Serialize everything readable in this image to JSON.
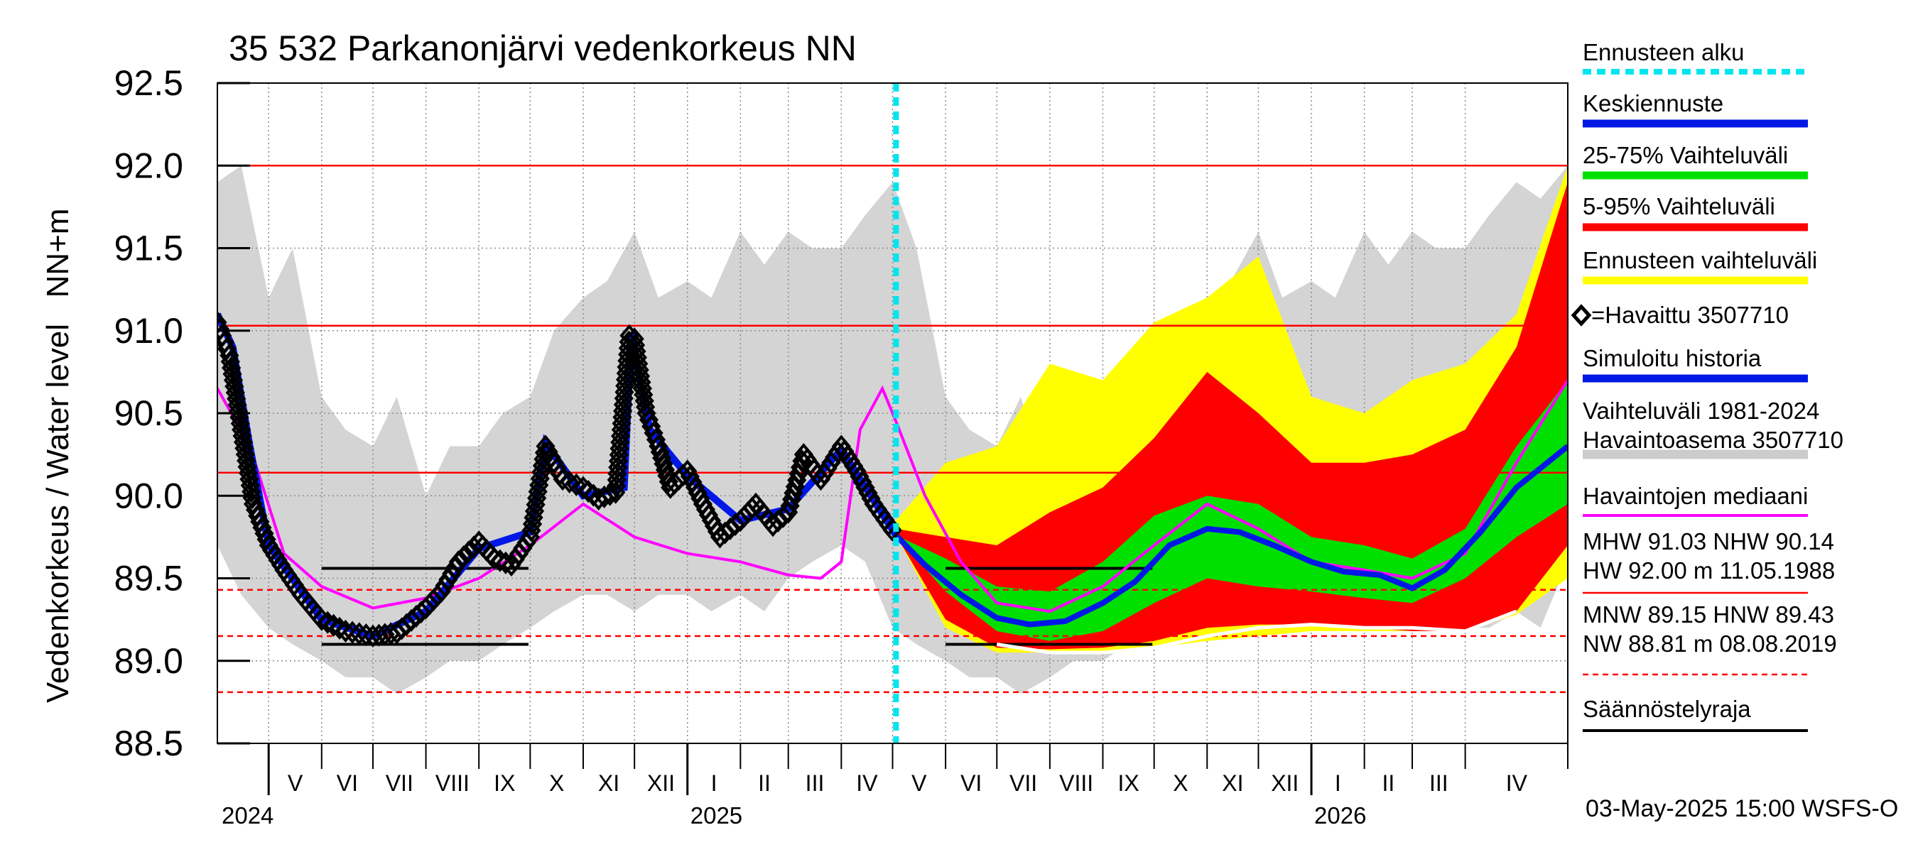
{
  "chart_data": {
    "type": "line",
    "title": "35 532 Parkanonjärvi vedenkorkeus NN",
    "ylabel": "Vedenkorkeus / Water level   NN+m",
    "ylim": [
      88.5,
      92.5
    ],
    "yticks": [
      "88.5",
      "89.0",
      "89.5",
      "90.0",
      "90.5",
      "91.0",
      "91.5",
      "92.0",
      "92.5"
    ],
    "xlim": [
      "2024-04-01",
      "2026-05-31"
    ],
    "months": [
      {
        "label": "V",
        "date": "2024-05-01"
      },
      {
        "label": "VI",
        "date": "2024-06-01"
      },
      {
        "label": "VII",
        "date": "2024-07-01"
      },
      {
        "label": "VIII",
        "date": "2024-08-01"
      },
      {
        "label": "IX",
        "date": "2024-09-01"
      },
      {
        "label": "X",
        "date": "2024-10-01"
      },
      {
        "label": "XI",
        "date": "2024-11-01"
      },
      {
        "label": "XII",
        "date": "2024-12-01"
      },
      {
        "label": "I",
        "date": "2025-01-01"
      },
      {
        "label": "II",
        "date": "2025-02-01"
      },
      {
        "label": "III",
        "date": "2025-03-01"
      },
      {
        "label": "IV",
        "date": "2025-04-01"
      },
      {
        "label": "V",
        "date": "2025-05-01"
      },
      {
        "label": "VI",
        "date": "2025-06-01"
      },
      {
        "label": "VII",
        "date": "2025-07-01"
      },
      {
        "label": "VIII",
        "date": "2025-08-01"
      },
      {
        "label": "IX",
        "date": "2025-09-01"
      },
      {
        "label": "X",
        "date": "2025-10-01"
      },
      {
        "label": "XI",
        "date": "2025-11-01"
      },
      {
        "label": "XII",
        "date": "2025-12-01"
      },
      {
        "label": "I",
        "date": "2026-01-01"
      },
      {
        "label": "II",
        "date": "2026-02-01"
      },
      {
        "label": "III",
        "date": "2026-03-01"
      },
      {
        "label": "IV",
        "date": "2026-04-01"
      }
    ],
    "years": [
      {
        "label": "2024",
        "date": "2024-05-01"
      },
      {
        "label": "2025",
        "date": "2025-01-01"
      },
      {
        "label": "2026",
        "date": "2026-01-01"
      }
    ],
    "forecast_start": "2025-05-03",
    "reference_lines": [
      {
        "name": "MHW",
        "value": 91.03,
        "style": "solid-red"
      },
      {
        "name": "NHW",
        "value": 90.14,
        "style": "solid-red"
      },
      {
        "name": "HW",
        "value": 92.0,
        "style": "solid-red"
      },
      {
        "name": "MNW",
        "value": 89.15,
        "style": "dashed-red"
      },
      {
        "name": "HNW",
        "value": 89.43,
        "style": "dashed-red"
      },
      {
        "name": "NW",
        "value": 88.81,
        "style": "dashed-red"
      }
    ],
    "regulation_limits": [
      {
        "from": "2024-06-01",
        "to": "2024-09-30",
        "value": 89.56
      },
      {
        "from": "2024-06-01",
        "to": "2024-09-30",
        "value": 89.1
      },
      {
        "from": "2025-06-01",
        "to": "2025-09-30",
        "value": 89.56
      },
      {
        "from": "2025-06-01",
        "to": "2025-09-30",
        "value": 89.1
      }
    ],
    "history_band": {
      "x": [
        "2024-04-01",
        "2024-04-15",
        "2024-05-01",
        "2024-05-15",
        "2024-06-01",
        "2024-06-15",
        "2024-07-01",
        "2024-07-15",
        "2024-08-01",
        "2024-08-15",
        "2024-09-01",
        "2024-09-15",
        "2024-10-01",
        "2024-10-15",
        "2024-11-01",
        "2024-11-15",
        "2024-12-01",
        "2024-12-15",
        "2025-01-01",
        "2025-01-15",
        "2025-02-01",
        "2025-02-15",
        "2025-03-01",
        "2025-03-15",
        "2025-04-01",
        "2025-04-15",
        "2025-05-01",
        "2025-05-15",
        "2025-06-01",
        "2025-06-15",
        "2025-07-01",
        "2025-07-15",
        "2025-08-01",
        "2025-08-15",
        "2025-09-01",
        "2025-09-15",
        "2025-10-01",
        "2025-10-15",
        "2025-11-01",
        "2025-11-15",
        "2025-12-01",
        "2025-12-15",
        "2026-01-01",
        "2026-01-15",
        "2026-02-01",
        "2026-02-15",
        "2026-03-01",
        "2026-03-15",
        "2026-04-01",
        "2026-04-15",
        "2026-05-01",
        "2026-05-15",
        "2026-05-31"
      ],
      "high": [
        91.9,
        92.0,
        91.2,
        91.5,
        90.6,
        90.4,
        90.3,
        90.6,
        90.0,
        90.3,
        90.3,
        90.5,
        90.6,
        91.0,
        91.2,
        91.3,
        91.6,
        91.2,
        91.3,
        91.2,
        91.6,
        91.4,
        91.6,
        91.5,
        91.5,
        91.7,
        91.9,
        91.5,
        90.6,
        90.4,
        90.3,
        90.6,
        90.0,
        90.3,
        90.3,
        90.5,
        90.6,
        91.0,
        91.2,
        91.3,
        91.6,
        91.2,
        91.3,
        91.2,
        91.6,
        91.4,
        91.6,
        91.5,
        91.5,
        91.7,
        91.9,
        91.8,
        92.0
      ],
      "low": [
        89.7,
        89.4,
        89.2,
        89.1,
        89.0,
        88.9,
        88.9,
        88.8,
        88.9,
        89.0,
        89.0,
        89.1,
        89.2,
        89.3,
        89.4,
        89.4,
        89.3,
        89.4,
        89.4,
        89.3,
        89.4,
        89.3,
        89.5,
        89.6,
        89.7,
        89.6,
        89.2,
        89.1,
        89.0,
        88.9,
        88.9,
        88.8,
        88.9,
        89.0,
        89.0,
        89.1,
        89.2,
        89.3,
        89.4,
        89.4,
        89.3,
        89.4,
        89.4,
        89.3,
        89.4,
        89.3,
        89.3,
        89.2,
        89.2,
        89.2,
        89.3,
        89.2,
        89.6
      ]
    },
    "observed": {
      "x": [
        "2024-04-01",
        "2024-04-08",
        "2024-04-15",
        "2024-04-22",
        "2024-05-01",
        "2024-05-10",
        "2024-05-20",
        "2024-06-01",
        "2024-06-15",
        "2024-07-01",
        "2024-07-15",
        "2024-08-01",
        "2024-08-10",
        "2024-08-20",
        "2024-09-01",
        "2024-09-10",
        "2024-09-20",
        "2024-10-01",
        "2024-10-10",
        "2024-10-20",
        "2024-11-01",
        "2024-11-10",
        "2024-11-20",
        "2024-11-28",
        "2024-12-01",
        "2024-12-08",
        "2024-12-15",
        "2024-12-22",
        "2025-01-01",
        "2025-01-10",
        "2025-01-20",
        "2025-02-01",
        "2025-02-10",
        "2025-02-20",
        "2025-03-01",
        "2025-03-10",
        "2025-03-20",
        "2025-04-01",
        "2025-04-10",
        "2025-04-20",
        "2025-05-03"
      ],
      "values": [
        91.05,
        90.85,
        90.4,
        89.95,
        89.7,
        89.55,
        89.4,
        89.25,
        89.18,
        89.15,
        89.17,
        89.32,
        89.42,
        89.6,
        89.72,
        89.62,
        89.58,
        89.75,
        90.3,
        90.1,
        90.05,
        89.98,
        90.02,
        90.97,
        90.95,
        90.5,
        90.3,
        90.05,
        90.15,
        89.95,
        89.75,
        89.85,
        89.95,
        89.82,
        89.9,
        90.25,
        90.1,
        90.3,
        90.15,
        89.95,
        89.76
      ]
    },
    "forecast_mean": {
      "x": [
        "2025-05-03",
        "2025-05-20",
        "2025-06-10",
        "2025-07-01",
        "2025-07-20",
        "2025-08-10",
        "2025-09-01",
        "2025-09-20",
        "2025-10-10",
        "2025-11-01",
        "2025-11-20",
        "2025-12-10",
        "2026-01-01",
        "2026-01-20",
        "2026-02-10",
        "2026-03-01",
        "2026-03-20",
        "2026-04-10",
        "2026-05-01",
        "2026-05-31"
      ],
      "values": [
        89.76,
        89.58,
        89.4,
        89.26,
        89.22,
        89.24,
        89.35,
        89.48,
        89.7,
        89.8,
        89.78,
        89.7,
        89.6,
        89.54,
        89.52,
        89.44,
        89.55,
        89.78,
        90.05,
        90.3
      ]
    },
    "band_25_75": {
      "x": [
        "2025-05-03",
        "2025-06-01",
        "2025-07-01",
        "2025-08-01",
        "2025-09-01",
        "2025-10-01",
        "2025-11-01",
        "2025-12-01",
        "2026-01-01",
        "2026-02-01",
        "2026-03-01",
        "2026-04-01",
        "2026-05-01",
        "2026-05-31"
      ],
      "high": [
        89.76,
        89.62,
        89.45,
        89.42,
        89.6,
        89.88,
        90.0,
        89.95,
        89.75,
        89.7,
        89.62,
        89.8,
        90.3,
        90.7
      ],
      "low": [
        89.76,
        89.42,
        89.18,
        89.12,
        89.18,
        89.35,
        89.5,
        89.45,
        89.42,
        89.38,
        89.35,
        89.5,
        89.75,
        89.95
      ]
    },
    "band_5_95": {
      "x": [
        "2025-05-03",
        "2025-06-01",
        "2025-07-01",
        "2025-08-01",
        "2025-09-01",
        "2025-10-01",
        "2025-11-01",
        "2025-12-01",
        "2026-01-01",
        "2026-02-01",
        "2026-03-01",
        "2026-04-01",
        "2026-05-01",
        "2026-05-31"
      ],
      "high": [
        89.8,
        89.75,
        89.7,
        89.9,
        90.05,
        90.35,
        90.75,
        90.5,
        90.2,
        90.2,
        90.25,
        90.4,
        90.9,
        91.9
      ],
      "low": [
        89.76,
        89.25,
        89.08,
        89.07,
        89.08,
        89.12,
        89.2,
        89.22,
        89.22,
        89.2,
        89.18,
        89.18,
        89.3,
        89.7
      ]
    },
    "band_forecast": {
      "x": [
        "2025-05-03",
        "2025-06-01",
        "2025-07-01",
        "2025-08-01",
        "2025-09-01",
        "2025-10-01",
        "2025-11-01",
        "2025-12-01",
        "2026-01-01",
        "2026-02-01",
        "2026-03-01",
        "2026-04-01",
        "2026-05-01",
        "2026-05-31"
      ],
      "high": [
        89.85,
        90.2,
        90.3,
        90.8,
        90.7,
        91.05,
        91.2,
        91.45,
        90.6,
        90.5,
        90.7,
        90.8,
        91.1,
        92.0
      ],
      "low": [
        89.76,
        89.2,
        89.05,
        89.05,
        89.05,
        89.08,
        89.12,
        89.15,
        89.18,
        89.18,
        89.18,
        89.18,
        89.28,
        89.5
      ]
    },
    "median": {
      "x": [
        "2024-04-01",
        "2024-04-20",
        "2024-05-10",
        "2024-06-01",
        "2024-07-01",
        "2024-08-01",
        "2024-09-01",
        "2024-10-01",
        "2024-11-01",
        "2024-12-01",
        "2025-01-01",
        "2025-02-01",
        "2025-03-01",
        "2025-03-20",
        "2025-04-01",
        "2025-04-12",
        "2025-04-25",
        "2025-05-03",
        "2025-05-20",
        "2025-06-10",
        "2025-07-01",
        "2025-08-01",
        "2025-09-01",
        "2025-10-01",
        "2025-11-01",
        "2025-12-01",
        "2026-01-01",
        "2026-02-01",
        "2026-03-01",
        "2026-04-01",
        "2026-05-01",
        "2026-05-31"
      ],
      "values": [
        90.65,
        90.3,
        89.65,
        89.45,
        89.32,
        89.38,
        89.5,
        89.7,
        89.95,
        89.75,
        89.65,
        89.6,
        89.52,
        89.5,
        89.6,
        90.4,
        90.65,
        90.45,
        90.0,
        89.6,
        89.35,
        89.3,
        89.45,
        89.7,
        89.95,
        89.8,
        89.6,
        89.55,
        89.5,
        89.65,
        90.2,
        90.7
      ]
    },
    "simulated_history": {
      "x": [
        "2024-04-01",
        "2024-04-10",
        "2024-04-20",
        "2024-05-01",
        "2024-06-01",
        "2024-07-01",
        "2024-08-01",
        "2024-09-01",
        "2024-10-01",
        "2024-10-10",
        "2024-11-01",
        "2024-11-25",
        "2024-11-29",
        "2024-12-10",
        "2025-01-01",
        "2025-02-01",
        "2025-03-01",
        "2025-04-01",
        "2025-05-03"
      ],
      "values": [
        91.1,
        90.9,
        90.3,
        89.7,
        89.25,
        89.15,
        89.3,
        89.68,
        89.78,
        90.32,
        90.0,
        90.05,
        90.98,
        90.4,
        90.12,
        89.85,
        89.92,
        90.28,
        89.76
      ]
    },
    "simulated_dry_year": {
      "x": [
        "2025-07-01",
        "2025-08-01",
        "2025-09-01",
        "2025-10-01",
        "2025-11-01",
        "2025-12-01",
        "2026-01-01",
        "2026-02-01",
        "2026-03-01",
        "2026-04-01",
        "2026-05-01"
      ],
      "values": [
        89.1,
        89.05,
        89.05,
        89.08,
        89.15,
        89.2,
        89.22,
        89.2,
        89.2,
        89.18,
        89.3
      ]
    },
    "legend": [
      {
        "label": "Ennusteen alku",
        "color": "#00e5ee",
        "style": "dashed"
      },
      {
        "label": "Keskiennuste",
        "color": "#0018e6",
        "style": "solid"
      },
      {
        "label": "25-75% Vaihteluväli",
        "color": "#00e000",
        "style": "solid"
      },
      {
        "label": "5-95% Vaihteluväli",
        "color": "#ff0000",
        "style": "solid"
      },
      {
        "label": "Ennusteen vaihteluväli",
        "color": "#ffff00",
        "style": "solid"
      },
      {
        "label": "=Havaittu 3507710",
        "color": "#000000",
        "style": "diamond"
      },
      {
        "label": "Simuloitu historia",
        "color": "#0018e6",
        "style": "solid"
      },
      {
        "label": "Vaihteluväli 1981-2024\n Havaintoasema 3507710",
        "color": "#cccccc",
        "style": "solid"
      },
      {
        "label": "Havaintojen mediaani",
        "color": "#ff00ff",
        "style": "solid"
      },
      {
        "label": "MHW  91.03 NHW  90.14\nHW  92.00 m 11.05.1988",
        "color": "#ff0000",
        "style": "solid"
      },
      {
        "label": "MNW  89.15 HNW  89.43\nNW  88.81 m 08.08.2019",
        "color": "#ff0000",
        "style": "dashed"
      },
      {
        "label": "Säännöstelyraja",
        "color": "#000000",
        "style": "solid"
      }
    ],
    "footer": "03-May-2025 15:00 WSFS-O"
  }
}
